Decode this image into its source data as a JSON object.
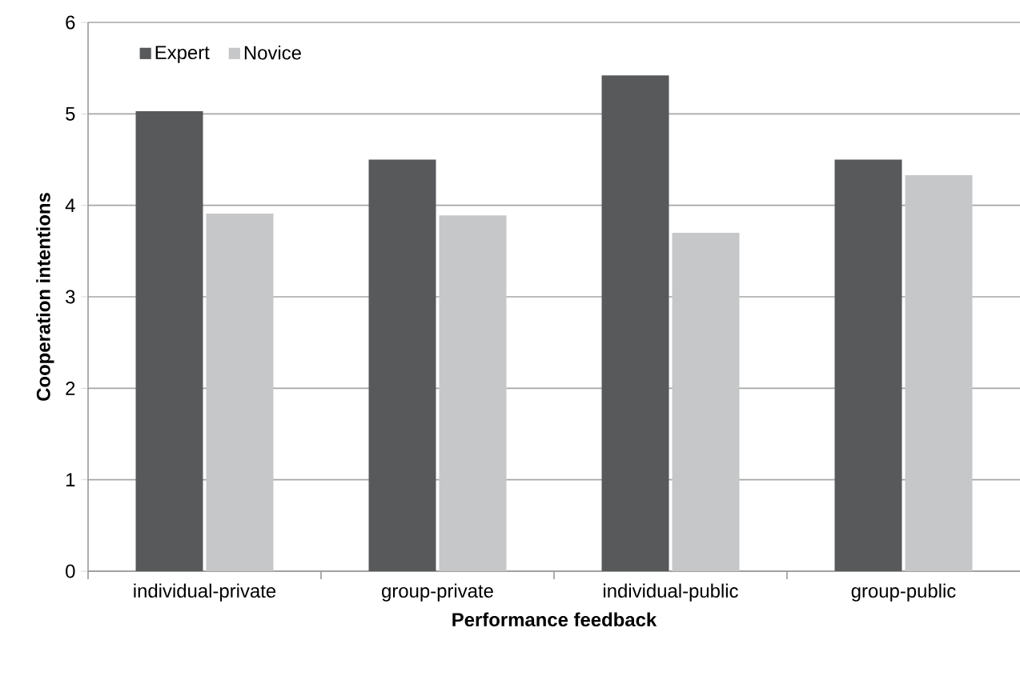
{
  "chart_data": {
    "type": "bar",
    "xlabel": "Performance feedback",
    "ylabel": "Cooperation intentions",
    "categories": [
      "individual-private",
      "group-private",
      "individual-public",
      "group-public"
    ],
    "series": [
      {
        "name": "Expert",
        "color": "#58595b",
        "values": [
          5.03,
          4.5,
          5.42,
          4.5
        ]
      },
      {
        "name": "Novice",
        "color": "#c6c7c9",
        "values": [
          3.91,
          3.89,
          3.7,
          4.33
        ]
      }
    ],
    "ylim": [
      0,
      6
    ],
    "yticks": [
      0,
      1,
      2,
      3,
      4,
      5,
      6
    ],
    "grid": "y",
    "legend": "top left"
  }
}
